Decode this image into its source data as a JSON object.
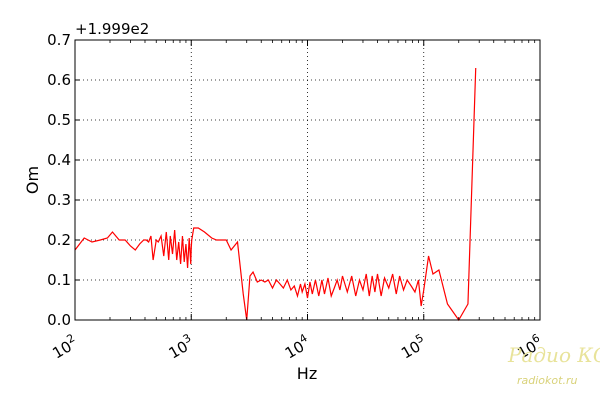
{
  "chart_data": {
    "type": "line",
    "x_scale": "log",
    "xlim": [
      100,
      1000000
    ],
    "ylim": [
      0.0,
      0.7
    ],
    "xlabel": "Hz",
    "ylabel": "Om",
    "offset_text": "+1.999e2",
    "grid": true,
    "line_color": "#ff0000",
    "y_ticks": [
      "0.0",
      "0.1",
      "0.2",
      "0.3",
      "0.4",
      "0.5",
      "0.6",
      "0.7"
    ],
    "x_ticks": [
      {
        "base": "10",
        "exp": "2"
      },
      {
        "base": "10",
        "exp": "3"
      },
      {
        "base": "10",
        "exp": "4"
      },
      {
        "base": "10",
        "exp": "5"
      },
      {
        "base": "10",
        "exp": "6"
      }
    ],
    "series": [
      {
        "x": [
          100,
          120,
          140,
          165,
          190,
          210,
          240,
          270,
          300,
          330,
          360,
          390,
          410,
          430,
          450,
          470,
          500,
          520,
          550,
          580,
          610,
          640,
          660,
          690,
          720,
          750,
          780,
          810,
          840,
          870,
          900,
          930,
          960,
          990,
          1000,
          1010,
          1050,
          1150,
          1300,
          1500,
          1650,
          1800,
          2000,
          2200,
          2500,
          2800,
          3000,
          3200,
          3400,
          3700,
          4000,
          4300,
          4600,
          5000,
          5400,
          5800,
          6200,
          6700,
          7200,
          7700,
          8200,
          8700,
          9000,
          9500,
          10000,
          10500,
          11000,
          11700,
          12500,
          13300,
          14000,
          15000,
          16000,
          17000,
          18000,
          19000,
          20000,
          22000,
          24000,
          26000,
          28000,
          30000,
          32000,
          34000,
          36000,
          38000,
          40000,
          43000,
          46000,
          50000,
          54000,
          58000,
          62000,
          67000,
          72000,
          78000,
          84000,
          90000,
          95000,
          100000,
          110000,
          120000,
          135000,
          160000,
          200000,
          240000,
          280000
        ],
        "y": [
          0.175,
          0.205,
          0.195,
          0.2,
          0.205,
          0.22,
          0.2,
          0.2,
          0.185,
          0.175,
          0.19,
          0.2,
          0.2,
          0.195,
          0.21,
          0.15,
          0.2,
          0.195,
          0.21,
          0.16,
          0.22,
          0.15,
          0.21,
          0.165,
          0.225,
          0.15,
          0.195,
          0.14,
          0.21,
          0.145,
          0.19,
          0.13,
          0.205,
          0.14,
          0.18,
          0.2,
          0.23,
          0.23,
          0.22,
          0.205,
          0.2,
          0.2,
          0.2,
          0.175,
          0.195,
          0.065,
          0.0,
          0.11,
          0.12,
          0.095,
          0.1,
          0.095,
          0.1,
          0.08,
          0.1,
          0.09,
          0.08,
          0.1,
          0.075,
          0.085,
          0.06,
          0.09,
          0.07,
          0.09,
          0.055,
          0.095,
          0.065,
          0.1,
          0.06,
          0.1,
          0.065,
          0.105,
          0.06,
          0.08,
          0.1,
          0.075,
          0.11,
          0.07,
          0.11,
          0.06,
          0.1,
          0.075,
          0.115,
          0.06,
          0.11,
          0.07,
          0.115,
          0.06,
          0.105,
          0.08,
          0.115,
          0.065,
          0.11,
          0.075,
          0.1,
          0.085,
          0.07,
          0.1,
          0.035,
          0.075,
          0.16,
          0.115,
          0.125,
          0.04,
          0.0,
          0.04,
          0.63
        ]
      }
    ]
  },
  "watermark": {
    "main": "Радио КОТ",
    "url": "radiokot.ru"
  }
}
